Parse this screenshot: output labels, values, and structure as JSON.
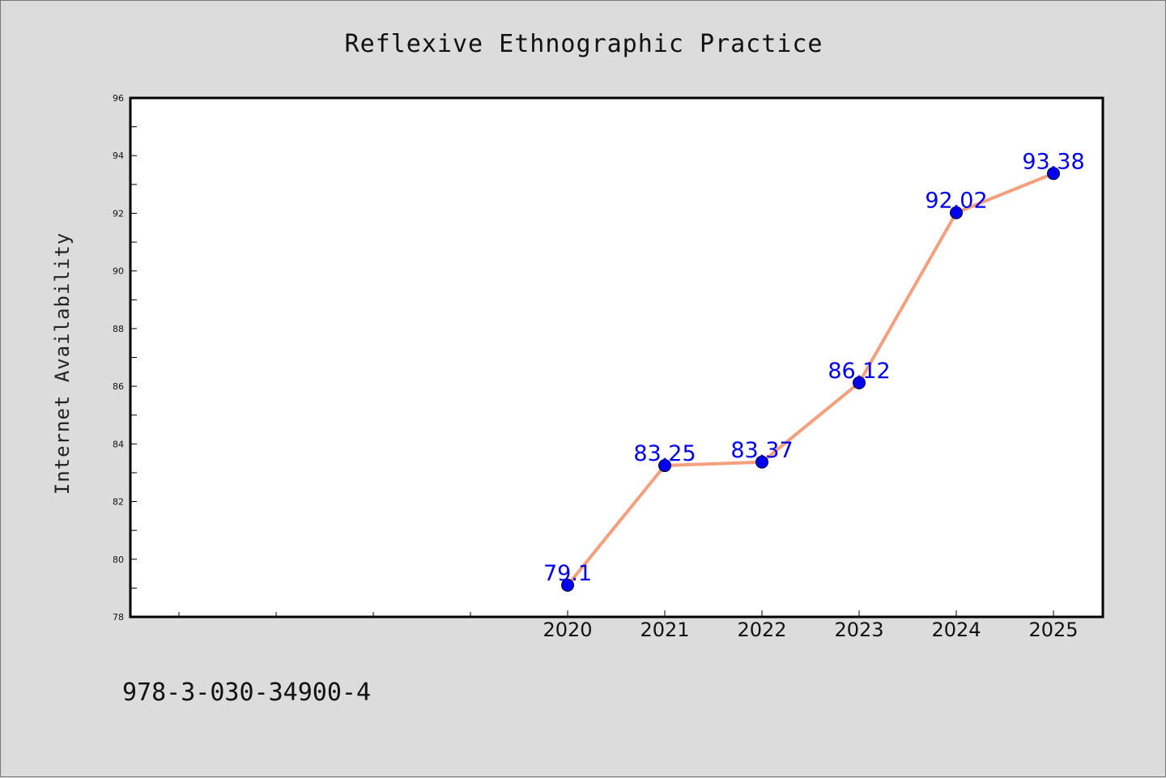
{
  "chart_data": {
    "type": "line",
    "title": "Reflexive Ethnographic Practice",
    "ylabel": "Internet Availability",
    "xlabel": "",
    "categories": [
      "2020",
      "2021",
      "2022",
      "2023",
      "2024",
      "2025"
    ],
    "series": [
      {
        "values": [
          79.1,
          83.25,
          83.37,
          86.12,
          92.02,
          93.38
        ],
        "line_color": "#f4a07c",
        "marker_color": "#0000ee",
        "labels": [
          "79.1",
          "83.25",
          "83.37",
          "86.12",
          "92.02",
          "93.38"
        ]
      }
    ],
    "ylim": [
      78,
      96
    ],
    "yticks": [
      "78",
      "80",
      "82",
      "84",
      "86",
      "88",
      "90",
      "92",
      "94",
      "96"
    ],
    "grid": false,
    "legend": "none"
  },
  "footer": {
    "isbn": "978-3-030-34900-4"
  },
  "colors": {
    "background": "#dcdcdc",
    "plot_background": "#ffffff",
    "axis": "#000000"
  }
}
